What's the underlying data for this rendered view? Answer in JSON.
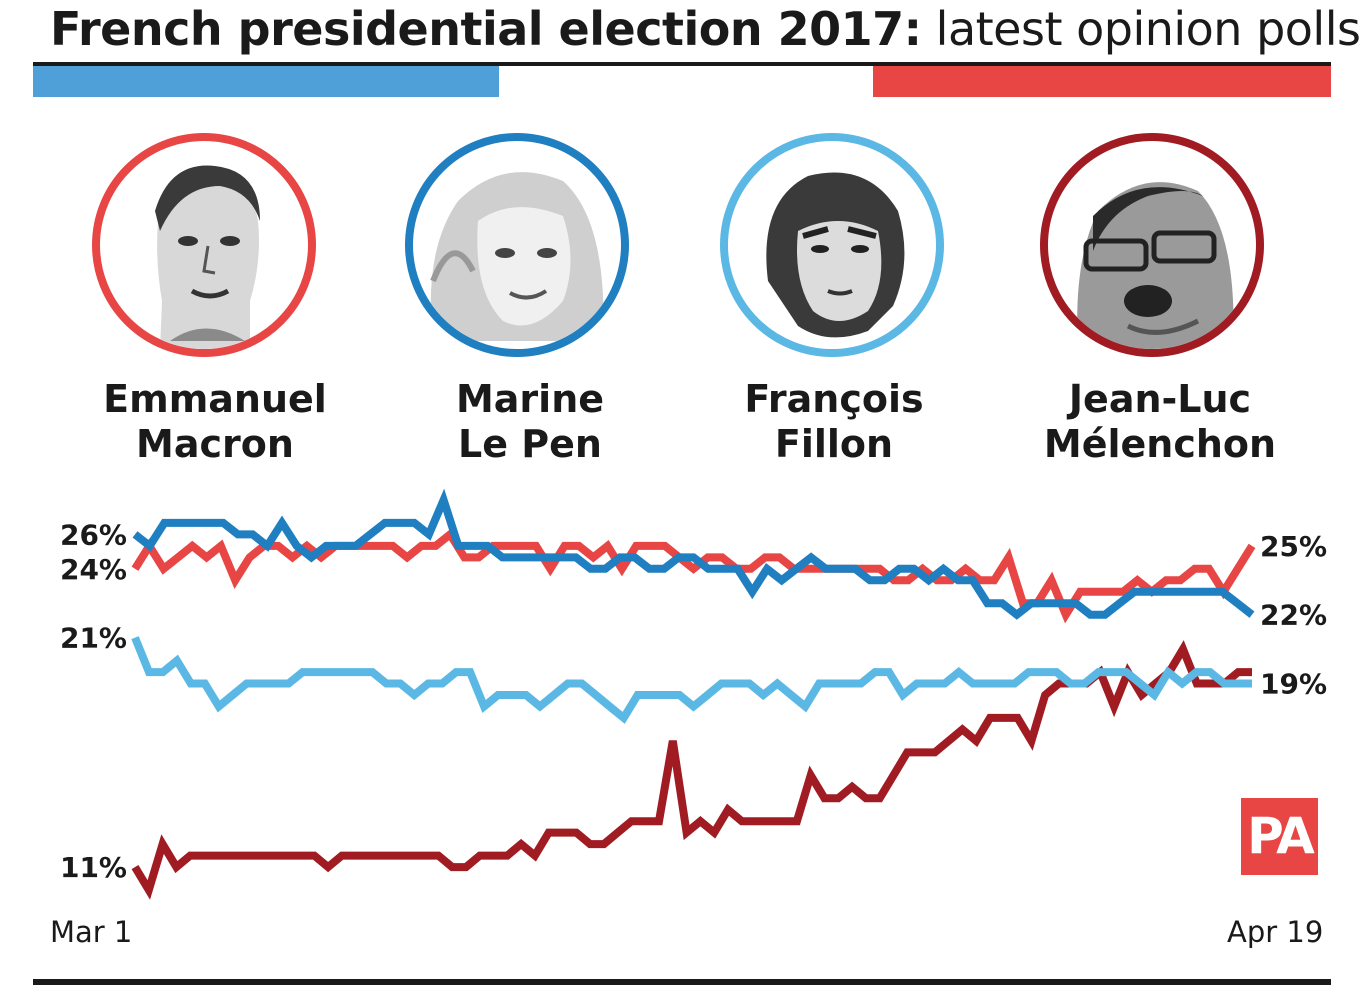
{
  "title": {
    "bold": "French presidential election 2017:",
    "light": "latest opinion polls"
  },
  "colors": {
    "macron": "#e84545",
    "lepen": "#1f7fc1",
    "fillon": "#5bb8e4",
    "melenchon": "#a01c22",
    "flag_blue": "#4f9fd8",
    "flag_red": "#e84545"
  },
  "candidates": [
    {
      "first": "Emmanuel",
      "last": "Macron",
      "ring": "#e84545"
    },
    {
      "first": "Marine",
      "last": "Le Pen",
      "ring": "#1f7fc1"
    },
    {
      "first": "François",
      "last": "Fillon",
      "ring": "#5bb8e4"
    },
    {
      "first": "Jean-Luc",
      "last": "Mélenchon",
      "ring": "#a01c22"
    }
  ],
  "chart_data": {
    "type": "line",
    "x_start_label": "Mar 1",
    "x_end_label": "Apr 19",
    "ylim": [
      10,
      27
    ],
    "grid": false,
    "series": [
      {
        "name": "Marine Le Pen",
        "color": "#1f7fc1",
        "start_label": "26%",
        "end_label": "22%",
        "values": [
          25.5,
          25,
          26,
          26,
          26,
          26,
          26,
          25.5,
          25.5,
          25,
          26,
          25,
          24.5,
          25,
          25,
          25,
          25.5,
          26,
          26,
          26,
          25.5,
          27,
          25,
          25,
          25,
          24.5,
          24.5,
          24.5,
          24.5,
          24.5,
          24.5,
          24,
          24,
          24.5,
          24.5,
          24,
          24,
          24.5,
          24.5,
          24,
          24,
          24,
          23,
          24,
          23.5,
          24,
          24.5,
          24,
          24,
          24,
          23.5,
          23.5,
          24,
          24,
          23.5,
          24,
          23.5,
          23.5,
          22.5,
          22.5,
          22,
          22.5,
          22.5,
          22.5,
          22.5,
          22,
          22,
          22.5,
          23,
          23,
          23,
          23,
          23,
          23,
          23,
          22.5,
          22
        ]
      },
      {
        "name": "Emmanuel Macron",
        "color": "#e84545",
        "start_label": "24%",
        "end_label": "25%",
        "values": [
          24,
          25,
          24,
          24.5,
          25,
          24.5,
          25,
          23.5,
          24.5,
          25,
          25,
          24.5,
          25,
          24.5,
          25,
          25,
          25,
          25,
          25,
          24.5,
          25,
          25,
          25.5,
          24.5,
          24.5,
          25,
          25,
          25,
          25,
          24,
          25,
          25,
          24.5,
          25,
          24,
          25,
          25,
          25,
          24.5,
          24,
          24.5,
          24.5,
          24,
          24,
          24.5,
          24.5,
          24,
          24,
          24,
          24,
          24,
          24,
          24,
          23.5,
          23.5,
          24,
          23.5,
          23.5,
          24,
          23.5,
          23.5,
          24.5,
          22.5,
          22.5,
          23.5,
          22,
          23,
          23,
          23,
          23,
          23.5,
          23,
          23.5,
          23.5,
          24,
          24,
          23,
          24,
          25
        ]
      },
      {
        "name": "François Fillon",
        "color": "#5bb8e4",
        "start_label": "21%",
        "end_label": "19%",
        "values": [
          21,
          19.5,
          19.5,
          20,
          19,
          19,
          18,
          18.5,
          19,
          19,
          19,
          19,
          19.5,
          19.5,
          19.5,
          19.5,
          19.5,
          19.5,
          19,
          19,
          18.5,
          19,
          19,
          19.5,
          19.5,
          18,
          18.5,
          18.5,
          18.5,
          18,
          18.5,
          19,
          19,
          18.5,
          18,
          17.5,
          18.5,
          18.5,
          18.5,
          18.5,
          18,
          18.5,
          19,
          19,
          19,
          18.5,
          19,
          18.5,
          18,
          19,
          19,
          19,
          19,
          19.5,
          19.5,
          18.5,
          19,
          19,
          19,
          19.5,
          19,
          19,
          19,
          19,
          19.5,
          19.5,
          19.5,
          19,
          19,
          19.5,
          19.5,
          19.5,
          19,
          18.5,
          19.5,
          19,
          19.5,
          19.5,
          19,
          19,
          19
        ]
      },
      {
        "name": "Jean-Luc Mélenchon",
        "color": "#a01c22",
        "start_label": "11%",
        "end_label": "",
        "values": [
          11,
          10,
          12,
          11,
          11.5,
          11.5,
          11.5,
          11.5,
          11.5,
          11.5,
          11.5,
          11.5,
          11.5,
          11.5,
          11,
          11.5,
          11.5,
          11.5,
          11.5,
          11.5,
          11.5,
          11.5,
          11.5,
          11,
          11,
          11.5,
          11.5,
          11.5,
          12,
          11.5,
          12.5,
          12.5,
          12.5,
          12,
          12,
          12.5,
          13,
          13,
          13,
          16.5,
          12.5,
          13,
          12.5,
          13.5,
          13,
          13,
          13,
          13,
          13,
          15,
          14,
          14,
          14.5,
          14,
          14,
          15,
          16,
          16,
          16,
          16.5,
          17,
          16.5,
          17.5,
          17.5,
          17.5,
          16.5,
          18.5,
          19,
          19,
          19,
          19.5,
          18,
          19.5,
          18.5,
          19,
          19.5,
          20.5,
          19,
          19,
          19,
          19.5,
          19.5
        ]
      }
    ]
  },
  "logo": {
    "text": "PA"
  }
}
